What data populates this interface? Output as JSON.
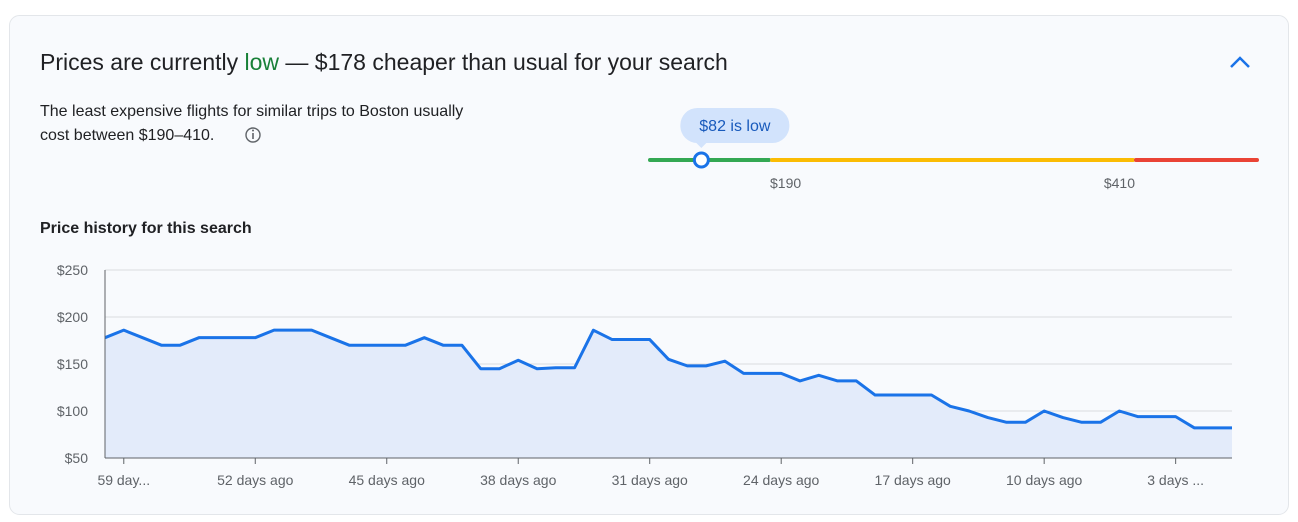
{
  "header": {
    "title_before": "Prices are currently ",
    "title_status": "low",
    "title_after": " — $178 cheaper than usual for your search",
    "description_line1": "The least expensive flights for similar trips to Boston usually",
    "description_line2": "cost between $190–410."
  },
  "price_range": {
    "lim": [
      0,
      500
    ],
    "marker": {
      "value": 82,
      "label": "$82 is low"
    },
    "thresholds": [
      {
        "value": 190,
        "label": "$190"
      },
      {
        "value": 410,
        "label": "$410"
      }
    ],
    "colors": [
      "#34a853",
      "#fbbc04",
      "#ea4335"
    ]
  },
  "chart_data": {
    "type": "line",
    "title": "Price history for this search",
    "color": "#1a73e8",
    "area_color": "#e3ebfa",
    "categories": [
      null,
      "59 day...",
      null,
      null,
      null,
      null,
      null,
      null,
      "52 days ago",
      null,
      null,
      null,
      null,
      null,
      null,
      "45 days ago",
      null,
      null,
      null,
      null,
      null,
      null,
      "38 days ago",
      null,
      null,
      null,
      null,
      null,
      null,
      "31 days ago",
      null,
      null,
      null,
      null,
      null,
      null,
      "24 days ago",
      null,
      null,
      null,
      null,
      null,
      null,
      "17 days ago",
      null,
      null,
      null,
      null,
      null,
      null,
      "10 days ago",
      null,
      null,
      null,
      null,
      null,
      null,
      "3 days ...",
      null,
      null,
      null
    ],
    "values": [
      178,
      186,
      178,
      170,
      170,
      178,
      178,
      178,
      178,
      186,
      186,
      186,
      178,
      170,
      170,
      170,
      170,
      178,
      170,
      170,
      145,
      145,
      154,
      145,
      146,
      146,
      186,
      176,
      176,
      176,
      155,
      148,
      148,
      153,
      140,
      140,
      140,
      132,
      138,
      132,
      132,
      117,
      117,
      117,
      117,
      105,
      100,
      93,
      88,
      88,
      100,
      93,
      88,
      88,
      100,
      94,
      94,
      94,
      82,
      82,
      82
    ],
    "ylim": [
      50,
      250
    ],
    "yticks": [
      {
        "value": 50,
        "label": "$50"
      },
      {
        "value": 100,
        "label": "$100"
      },
      {
        "value": 150,
        "label": "$150"
      },
      {
        "value": 200,
        "label": "$200"
      },
      {
        "value": 250,
        "label": "$250"
      }
    ],
    "grid": true
  }
}
